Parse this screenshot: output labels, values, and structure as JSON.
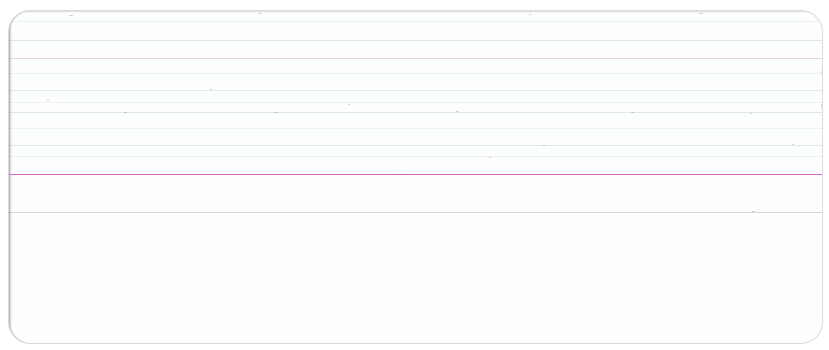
{
  "document": {
    "type": "blank ruled index card",
    "colors": {
      "paper": "#fdfefe",
      "ruled_line": "#7896be",
      "header_line": "#d96ac8"
    }
  }
}
